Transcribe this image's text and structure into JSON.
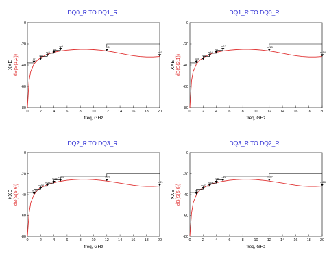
{
  "chart_data": [
    {
      "type": "line",
      "title": "DQ0_R TO DQ1_R",
      "xlabel": "freq, GHz",
      "ylabel": [
        "XXE",
        "dB(S(1,2))"
      ],
      "xlim": [
        0,
        20
      ],
      "ylim": [
        -80,
        0
      ],
      "xticks": [
        0,
        2,
        4,
        6,
        8,
        10,
        12,
        14,
        16,
        18,
        20
      ],
      "yticks": [
        0,
        -20,
        -40,
        -60,
        -80
      ],
      "grid": false,
      "series": [
        {
          "color": "#e03030",
          "x": [
            0,
            0.25,
            0.5,
            1,
            1.5,
            2,
            3,
            4,
            5,
            6,
            7,
            8,
            9,
            10,
            11,
            12,
            13,
            14,
            15,
            16,
            17,
            18,
            19,
            20
          ],
          "y": [
            -80,
            -55,
            -46,
            -39,
            -35.5,
            -33,
            -30,
            -28,
            -26.8,
            -26,
            -25.5,
            -25.2,
            -25.2,
            -25.5,
            -26,
            -26.8,
            -27.8,
            -29,
            -30.2,
            -31.2,
            -32,
            -32.4,
            -32.4,
            -32
          ]
        },
        {
          "color": "#000000",
          "x": [
            0,
            1,
            1,
            2,
            2,
            3,
            3,
            4,
            4,
            5,
            5,
            12,
            12,
            20
          ],
          "y": [
            -38,
            -38,
            -35,
            -35,
            -32,
            -32,
            -29,
            -29,
            -26,
            -26,
            -23,
            -23,
            -20,
            -20
          ]
        }
      ],
      "markers": [
        {
          "label": "m1",
          "x": 1,
          "y": -38
        },
        {
          "label": "m2",
          "x": 2,
          "y": -35
        },
        {
          "label": "m3",
          "x": 3,
          "y": -32
        },
        {
          "label": "m4",
          "x": 4,
          "y": -29
        },
        {
          "label": "m5",
          "x": 5,
          "y": -26
        },
        {
          "label": "m6",
          "x": 12,
          "y": -26.8
        },
        {
          "label": "m7",
          "x": 20,
          "y": -32
        }
      ]
    },
    {
      "type": "line",
      "title": "DQ1_R TO DQ0_R",
      "xlabel": "freq, GHz",
      "ylabel": [
        "XXE",
        "dB(S(2,1))"
      ],
      "xlim": [
        0,
        20
      ],
      "ylim": [
        -80,
        0
      ],
      "xticks": [
        0,
        2,
        4,
        6,
        8,
        10,
        12,
        14,
        16,
        18,
        20
      ],
      "yticks": [
        0,
        -20,
        -40,
        -60,
        -80
      ],
      "grid": false,
      "series": [
        {
          "color": "#e03030",
          "x": [
            0,
            0.25,
            0.5,
            1,
            1.5,
            2,
            3,
            4,
            5,
            6,
            7,
            8,
            9,
            10,
            11,
            12,
            13,
            14,
            15,
            16,
            17,
            18,
            19,
            20
          ],
          "y": [
            -80,
            -55,
            -46,
            -39,
            -35.5,
            -33,
            -30,
            -28,
            -26.8,
            -26,
            -25.5,
            -25.2,
            -25.2,
            -25.5,
            -26,
            -26.8,
            -27.8,
            -29,
            -30.2,
            -31.2,
            -32,
            -32.4,
            -32.4,
            -32
          ]
        },
        {
          "color": "#000000",
          "x": [
            0,
            1,
            1,
            2,
            2,
            3,
            3,
            4,
            4,
            5,
            5,
            12,
            12,
            20
          ],
          "y": [
            -38,
            -38,
            -35,
            -35,
            -32,
            -32,
            -29,
            -29,
            -26,
            -26,
            -23,
            -23,
            -20,
            -20
          ]
        }
      ],
      "markers": [
        {
          "label": "m8",
          "x": 1,
          "y": -38
        },
        {
          "label": "m9",
          "x": 2,
          "y": -35
        },
        {
          "label": "m10",
          "x": 3,
          "y": -32
        },
        {
          "label": "m11",
          "x": 4,
          "y": -29
        },
        {
          "label": "m12",
          "x": 5,
          "y": -26
        },
        {
          "label": "m13",
          "x": 12,
          "y": -26.8
        },
        {
          "label": "m14",
          "x": 20,
          "y": -32
        }
      ]
    },
    {
      "type": "line",
      "title": "DQ2_R TO DQ3_R",
      "xlabel": "freq, GHz",
      "ylabel": [
        "XXE",
        "dB(S(5,6))"
      ],
      "xlim": [
        0,
        20
      ],
      "ylim": [
        -80,
        0
      ],
      "xticks": [
        0,
        2,
        4,
        6,
        8,
        10,
        12,
        14,
        16,
        18,
        20
      ],
      "yticks": [
        0,
        -20,
        -40,
        -60,
        -80
      ],
      "grid": false,
      "series": [
        {
          "color": "#e03030",
          "x": [
            0,
            0.25,
            0.5,
            1,
            1.5,
            2,
            3,
            4,
            5,
            6,
            7,
            8,
            9,
            10,
            11,
            12,
            13,
            14,
            15,
            16,
            17,
            18,
            19,
            20
          ],
          "y": [
            -80,
            -58,
            -48,
            -40,
            -36,
            -33.5,
            -30.5,
            -28.5,
            -27.2,
            -26.3,
            -25.7,
            -25.4,
            -25.4,
            -25.7,
            -26.3,
            -27,
            -28,
            -29,
            -30,
            -31,
            -31.8,
            -32.2,
            -32.2,
            -31.8
          ]
        },
        {
          "color": "#000000",
          "x": [
            0,
            1,
            1,
            2,
            2,
            3,
            3,
            4,
            4,
            5,
            5,
            12,
            12,
            20
          ],
          "y": [
            -38,
            -38,
            -35,
            -35,
            -32,
            -32,
            -29,
            -29,
            -26,
            -26,
            -23,
            -23,
            -20,
            -20
          ]
        }
      ],
      "markers": [
        {
          "label": "m15",
          "x": 1,
          "y": -40
        },
        {
          "label": "m16",
          "x": 2,
          "y": -35
        },
        {
          "label": "m17",
          "x": 3,
          "y": -32
        },
        {
          "label": "m18",
          "x": 4,
          "y": -29
        },
        {
          "label": "m19",
          "x": 5,
          "y": -27.2
        },
        {
          "label": "m20",
          "x": 12,
          "y": -27
        },
        {
          "label": "m21",
          "x": 20,
          "y": -31.8
        }
      ]
    },
    {
      "type": "line",
      "title": "DQ3_R TO DQ2_R",
      "xlabel": "freq, GHz",
      "ylabel": [
        "XXE",
        "dB(S(5,6))"
      ],
      "xlim": [
        0,
        20
      ],
      "ylim": [
        -80,
        0
      ],
      "xticks": [
        0,
        2,
        4,
        6,
        8,
        10,
        12,
        14,
        16,
        18,
        20
      ],
      "yticks": [
        0,
        -20,
        -40,
        -60,
        -80
      ],
      "grid": false,
      "series": [
        {
          "color": "#e03030",
          "x": [
            0,
            0.25,
            0.5,
            1,
            1.5,
            2,
            3,
            4,
            5,
            6,
            7,
            8,
            9,
            10,
            11,
            12,
            13,
            14,
            15,
            16,
            17,
            18,
            19,
            20
          ],
          "y": [
            -80,
            -58,
            -48,
            -40,
            -36,
            -33.5,
            -30.5,
            -28.5,
            -27.2,
            -26.3,
            -25.7,
            -25.4,
            -25.4,
            -25.7,
            -26.3,
            -27,
            -28,
            -29,
            -30,
            -31,
            -31.8,
            -32.2,
            -32.2,
            -31.8
          ]
        },
        {
          "color": "#000000",
          "x": [
            0,
            1,
            1,
            2,
            2,
            3,
            3,
            4,
            4,
            5,
            5,
            12,
            12,
            20
          ],
          "y": [
            -38,
            -38,
            -35,
            -35,
            -32,
            -32,
            -29,
            -29,
            -26,
            -26,
            -23,
            -23,
            -20,
            -20
          ]
        }
      ],
      "markers": [
        {
          "label": "m22",
          "x": 1,
          "y": -40
        },
        {
          "label": "m23",
          "x": 2,
          "y": -35
        },
        {
          "label": "m24",
          "x": 3,
          "y": -32
        },
        {
          "label": "m25",
          "x": 4,
          "y": -29
        },
        {
          "label": "m26",
          "x": 5,
          "y": -27.2
        },
        {
          "label": "m27",
          "x": 12,
          "y": -27
        },
        {
          "label": "m28",
          "x": 20,
          "y": -31.8
        }
      ]
    }
  ]
}
